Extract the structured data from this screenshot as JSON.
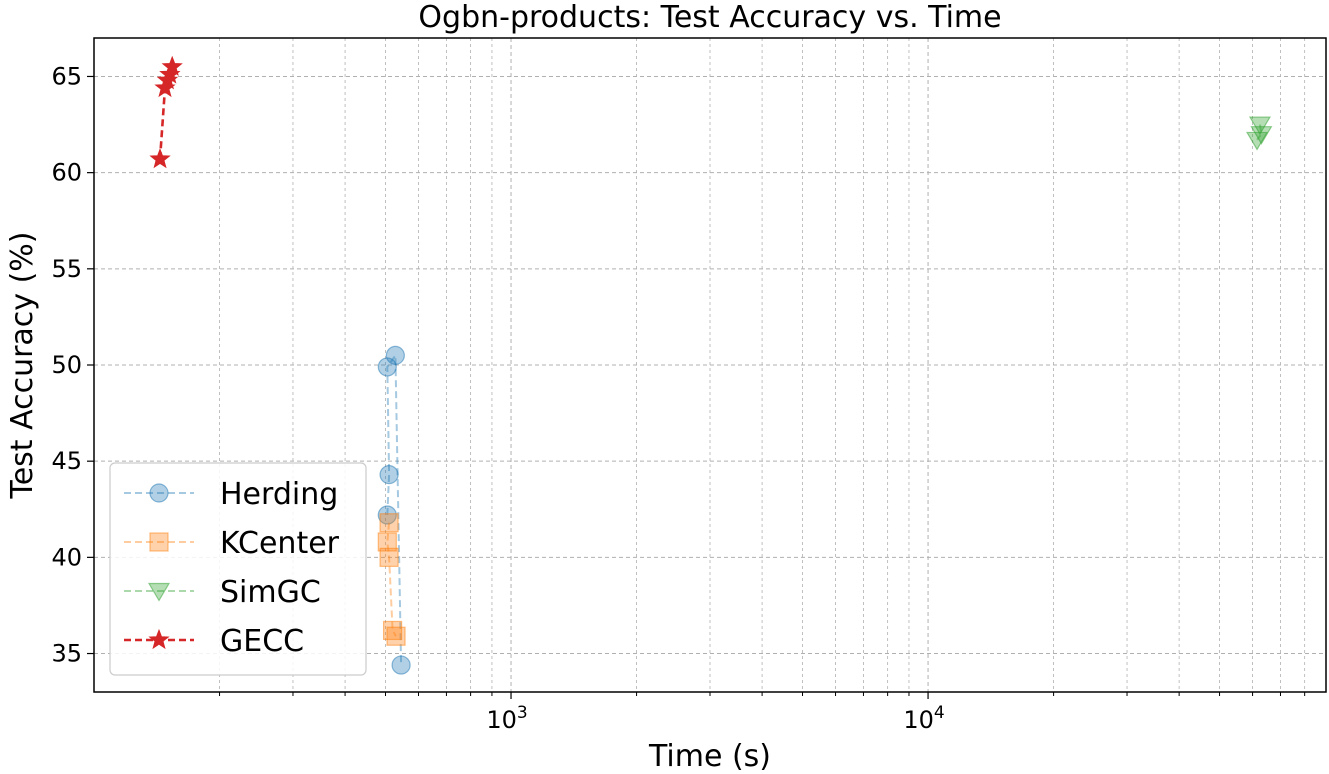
{
  "chart_data": {
    "type": "scatter",
    "title": "Ogbn-products: Test Accuracy vs. Time",
    "xlabel": "Time (s)",
    "ylabel": "Test Accuracy (%)",
    "xscale": "log",
    "xlim": [
      100,
      90000
    ],
    "ylim": [
      33,
      67
    ],
    "xticks": [
      {
        "value": 1000,
        "base": "10",
        "exp": "3"
      },
      {
        "value": 10000,
        "base": "10",
        "exp": "4"
      }
    ],
    "yticks": [
      35,
      40,
      45,
      50,
      55,
      60,
      65
    ],
    "grid": true,
    "legend_position": "lower-left",
    "series": [
      {
        "name": "Herding",
        "color": "#1f77b4",
        "marker": "circle",
        "line": "dashed",
        "alpha": 0.35,
        "points": [
          {
            "x": 505,
            "y": 42.2
          },
          {
            "x": 510,
            "y": 44.3
          },
          {
            "x": 505,
            "y": 49.9
          },
          {
            "x": 528,
            "y": 50.5
          },
          {
            "x": 545,
            "y": 34.4
          }
        ]
      },
      {
        "name": "KCenter",
        "color": "#ff7f0e",
        "marker": "square",
        "line": "dashed",
        "alpha": 0.35,
        "points": [
          {
            "x": 510,
            "y": 41.8
          },
          {
            "x": 505,
            "y": 40.8
          },
          {
            "x": 510,
            "y": 40.0
          },
          {
            "x": 520,
            "y": 36.2
          },
          {
            "x": 530,
            "y": 35.9
          }
        ]
      },
      {
        "name": "SimGC",
        "color": "#2ca02c",
        "marker": "triangle-down",
        "line": "dashed",
        "alpha": 0.35,
        "points": [
          {
            "x": 62500,
            "y": 62.5
          },
          {
            "x": 63000,
            "y": 62.0
          },
          {
            "x": 61500,
            "y": 61.7
          }
        ]
      },
      {
        "name": "GECC",
        "color": "#d62728",
        "marker": "star",
        "line": "dashed",
        "alpha": 1.0,
        "points": [
          {
            "x": 144,
            "y": 60.7
          },
          {
            "x": 148,
            "y": 64.4
          },
          {
            "x": 150,
            "y": 64.8
          },
          {
            "x": 152,
            "y": 65.1
          },
          {
            "x": 154,
            "y": 65.5
          }
        ]
      }
    ]
  }
}
